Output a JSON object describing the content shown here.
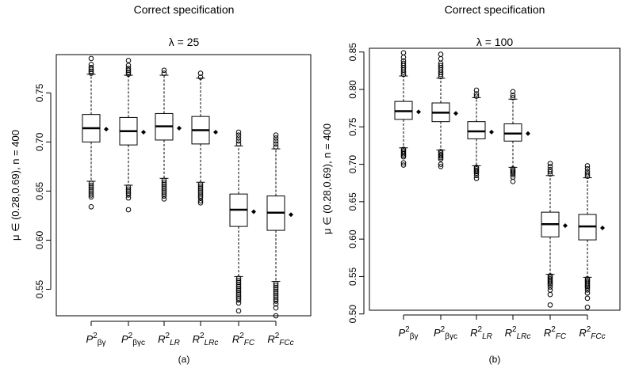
{
  "chart_data": [
    {
      "type": "box",
      "title": "Correct specification",
      "subtitle": "λ = 25",
      "ylabel": "μ ∈ (0.28,0.69),  n = 400",
      "caption": "(a)",
      "ylim": [
        0.523,
        0.789
      ],
      "yticks": [
        0.55,
        0.6,
        0.65,
        0.7,
        0.75
      ],
      "ytick_labels": [
        "0.55",
        "0.60",
        "0.65",
        "0.70",
        "0.75"
      ],
      "categories": [
        {
          "base": "P",
          "sup": "2",
          "sub": "βγ"
        },
        {
          "base": "P",
          "sup": "2",
          "sub": "βγc"
        },
        {
          "base": "R",
          "sup": "2",
          "sub": "LR"
        },
        {
          "base": "R",
          "sup": "2",
          "sub": "LRc"
        },
        {
          "base": "R",
          "sup": "2",
          "sub": "FC"
        },
        {
          "base": "R",
          "sup": "2",
          "sub": "FCc"
        }
      ],
      "boxes": [
        {
          "lower_whisker": 0.66,
          "q1": 0.7,
          "median": 0.714,
          "q3": 0.728,
          "upper_whisker": 0.769,
          "mean": 0.713,
          "outliers_low": [
            0.658,
            0.656,
            0.654,
            0.652,
            0.65,
            0.648,
            0.646,
            0.644,
            0.634
          ],
          "outliers_high": [
            0.77,
            0.772,
            0.774,
            0.776,
            0.779,
            0.785
          ]
        },
        {
          "lower_whisker": 0.656,
          "q1": 0.697,
          "median": 0.711,
          "q3": 0.725,
          "upper_whisker": 0.768,
          "mean": 0.71,
          "outliers_low": [
            0.654,
            0.652,
            0.65,
            0.648,
            0.646,
            0.643,
            0.631
          ],
          "outliers_high": [
            0.769,
            0.771,
            0.773,
            0.775,
            0.778,
            0.783
          ]
        },
        {
          "lower_whisker": 0.663,
          "q1": 0.702,
          "median": 0.716,
          "q3": 0.729,
          "upper_whisker": 0.768,
          "mean": 0.714,
          "outliers_low": [
            0.661,
            0.659,
            0.657,
            0.655,
            0.653,
            0.651,
            0.649,
            0.647,
            0.645,
            0.642
          ],
          "outliers_high": [
            0.77,
            0.773
          ]
        },
        {
          "lower_whisker": 0.659,
          "q1": 0.698,
          "median": 0.712,
          "q3": 0.726,
          "upper_whisker": 0.765,
          "mean": 0.71,
          "outliers_low": [
            0.657,
            0.655,
            0.653,
            0.651,
            0.649,
            0.647,
            0.645,
            0.643,
            0.64,
            0.638
          ],
          "outliers_high": [
            0.766,
            0.77
          ]
        },
        {
          "lower_whisker": 0.563,
          "q1": 0.614,
          "median": 0.631,
          "q3": 0.647,
          "upper_whisker": 0.696,
          "mean": 0.629,
          "outliers_low": [
            0.561,
            0.559,
            0.557,
            0.555,
            0.553,
            0.551,
            0.549,
            0.547,
            0.545,
            0.543,
            0.541,
            0.539,
            0.536,
            0.528
          ],
          "outliers_high": [
            0.698,
            0.701,
            0.704,
            0.707,
            0.71
          ]
        },
        {
          "lower_whisker": 0.558,
          "q1": 0.61,
          "median": 0.628,
          "q3": 0.645,
          "upper_whisker": 0.693,
          "mean": 0.626,
          "outliers_low": [
            0.556,
            0.554,
            0.552,
            0.55,
            0.548,
            0.546,
            0.544,
            0.542,
            0.54,
            0.538,
            0.535,
            0.531,
            0.523
          ],
          "outliers_high": [
            0.695,
            0.698,
            0.701,
            0.704,
            0.707
          ]
        }
      ]
    },
    {
      "type": "box",
      "title": "Correct specification",
      "subtitle": "λ = 100",
      "ylabel": "μ ∈ (0.28,0.69),  n = 400",
      "caption": "(b)",
      "ylim": [
        0.505,
        0.855
      ],
      "yticks": [
        0.5,
        0.55,
        0.6,
        0.65,
        0.7,
        0.75,
        0.8,
        0.85
      ],
      "ytick_labels": [
        "0.50",
        "0.55",
        "0.60",
        "0.65",
        "0.70",
        "0.75",
        "0.80",
        "0.85"
      ],
      "categories": [
        {
          "base": "P",
          "sup": "2",
          "sub": "βγ"
        },
        {
          "base": "P",
          "sup": "2",
          "sub": "βγc"
        },
        {
          "base": "R",
          "sup": "2",
          "sub": "LR"
        },
        {
          "base": "R",
          "sup": "2",
          "sub": "LRc"
        },
        {
          "base": "R",
          "sup": "2",
          "sub": "FC"
        },
        {
          "base": "R",
          "sup": "2",
          "sub": "FCc"
        }
      ],
      "boxes": [
        {
          "lower_whisker": 0.722,
          "q1": 0.76,
          "median": 0.771,
          "q3": 0.784,
          "upper_whisker": 0.818,
          "mean": 0.77,
          "outliers_low": [
            0.72,
            0.718,
            0.716,
            0.714,
            0.712,
            0.71,
            0.702,
            0.699
          ],
          "outliers_high": [
            0.82,
            0.823,
            0.826,
            0.829,
            0.832,
            0.835,
            0.838,
            0.843,
            0.849
          ]
        },
        {
          "lower_whisker": 0.719,
          "q1": 0.757,
          "median": 0.769,
          "q3": 0.782,
          "upper_whisker": 0.815,
          "mean": 0.768,
          "outliers_low": [
            0.717,
            0.715,
            0.713,
            0.711,
            0.709,
            0.707,
            0.7,
            0.697
          ],
          "outliers_high": [
            0.817,
            0.82,
            0.823,
            0.826,
            0.829,
            0.832,
            0.835,
            0.841,
            0.847
          ]
        },
        {
          "lower_whisker": 0.698,
          "q1": 0.734,
          "median": 0.744,
          "q3": 0.757,
          "upper_whisker": 0.789,
          "mean": 0.743,
          "outliers_low": [
            0.696,
            0.694,
            0.692,
            0.69,
            0.688,
            0.685,
            0.681
          ],
          "outliers_high": [
            0.791,
            0.794,
            0.799
          ]
        },
        {
          "lower_whisker": 0.696,
          "q1": 0.731,
          "median": 0.741,
          "q3": 0.754,
          "upper_whisker": 0.787,
          "mean": 0.741,
          "outliers_low": [
            0.694,
            0.692,
            0.69,
            0.688,
            0.686,
            0.683,
            0.677
          ],
          "outliers_high": [
            0.789,
            0.792,
            0.797
          ]
        },
        {
          "lower_whisker": 0.553,
          "q1": 0.603,
          "median": 0.62,
          "q3": 0.636,
          "upper_whisker": 0.685,
          "mean": 0.618,
          "outliers_low": [
            0.551,
            0.549,
            0.547,
            0.545,
            0.543,
            0.541,
            0.539,
            0.536,
            0.532,
            0.526,
            0.512
          ],
          "outliers_high": [
            0.687,
            0.69,
            0.693,
            0.697,
            0.701
          ]
        },
        {
          "lower_whisker": 0.549,
          "q1": 0.599,
          "median": 0.617,
          "q3": 0.633,
          "upper_whisker": 0.682,
          "mean": 0.615,
          "outliers_low": [
            0.547,
            0.545,
            0.543,
            0.541,
            0.539,
            0.537,
            0.535,
            0.532,
            0.528,
            0.521,
            0.509
          ],
          "outliers_high": [
            0.684,
            0.687,
            0.69,
            0.694,
            0.698
          ]
        }
      ]
    }
  ]
}
